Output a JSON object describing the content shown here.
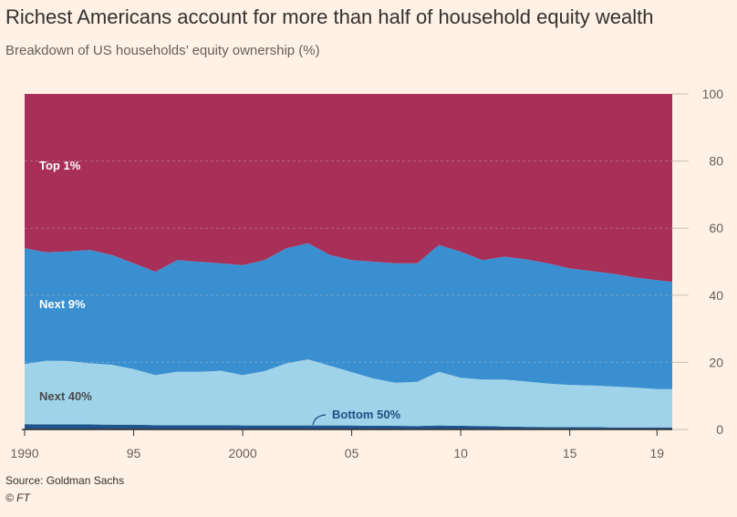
{
  "title": "Richest Americans account for more than half of household equity wealth",
  "subtitle": "Breakdown of US households’ equity ownership (%)",
  "source": "Source: Goldman Sachs",
  "credit": "© FT",
  "chart_data": {
    "type": "area",
    "stacked": true,
    "title": "Richest Americans account for more than half of household equity wealth",
    "ylabel": "Breakdown of US households’ equity ownership (%)",
    "xlim": [
      1990,
      2019.7
    ],
    "ylim": [
      0,
      100
    ],
    "x_ticks": [
      1990,
      1995,
      2000,
      2005,
      2010,
      2015,
      2019
    ],
    "x_tick_labels": [
      "1990",
      "95",
      "2000",
      "05",
      "10",
      "15",
      "19"
    ],
    "y_ticks": [
      0,
      20,
      40,
      60,
      80,
      100
    ],
    "y_tick_labels": [
      "0",
      "20",
      "40",
      "60",
      "80",
      "100"
    ],
    "x": [
      1990,
      1991,
      1992,
      1993,
      1994,
      1995,
      1996,
      1997,
      1998,
      1999,
      2000,
      2001,
      2002,
      2003,
      2004,
      2005,
      2006,
      2007,
      2008,
      2009,
      2010,
      2011,
      2012,
      2013,
      2014,
      2015,
      2016,
      2017,
      2018,
      2019,
      2019.7
    ],
    "series": [
      {
        "name": "Bottom 50%",
        "color": "#1e558c",
        "label_color": "#1e4f80",
        "values": [
          1.6,
          1.5,
          1.5,
          1.5,
          1.4,
          1.4,
          1.3,
          1.3,
          1.3,
          1.3,
          1.2,
          1.2,
          1.2,
          1.2,
          1.2,
          1.2,
          1.1,
          1.1,
          1.0,
          1.2,
          1.1,
          1.0,
          0.9,
          0.8,
          0.7,
          0.7,
          0.7,
          0.6,
          0.6,
          0.6,
          0.6
        ]
      },
      {
        "name": "Next 40%",
        "color": "#9ed3ea",
        "label_color": "#4a4a4a",
        "values": [
          17.9,
          19.0,
          18.9,
          18.2,
          17.9,
          16.6,
          14.9,
          15.9,
          15.9,
          16.2,
          15.0,
          16.2,
          18.5,
          19.7,
          17.8,
          15.9,
          14.1,
          12.8,
          13.2,
          16.0,
          14.3,
          13.9,
          14.0,
          13.5,
          13.0,
          12.6,
          12.4,
          12.2,
          11.9,
          11.4,
          11.4
        ]
      },
      {
        "name": "Next 9%",
        "color": "#3a8fd0",
        "label_color": "#ffffff",
        "values": [
          34.5,
          32.3,
          32.7,
          33.8,
          32.7,
          31.5,
          30.8,
          33.3,
          32.8,
          32.0,
          32.8,
          33.1,
          34.3,
          34.6,
          33.0,
          33.4,
          34.8,
          35.6,
          35.3,
          37.8,
          37.6,
          35.6,
          36.6,
          36.4,
          35.8,
          34.7,
          34.1,
          33.6,
          32.8,
          32.5,
          32.0
        ]
      },
      {
        "name": "Top 1%",
        "color": "#a82f57",
        "label_color": "#ffffff",
        "values": [
          46.0,
          47.2,
          46.9,
          46.5,
          48.0,
          50.5,
          53.0,
          49.5,
          50.0,
          50.5,
          51.0,
          49.5,
          46.0,
          44.5,
          48.0,
          49.5,
          50.0,
          50.5,
          50.5,
          45.0,
          47.0,
          49.5,
          48.5,
          49.3,
          50.5,
          52.0,
          52.8,
          53.6,
          54.7,
          55.5,
          56.0
        ]
      }
    ],
    "annotations": [
      "Top 1%",
      "Next 9%",
      "Next 40%",
      "Bottom 50%"
    ]
  }
}
